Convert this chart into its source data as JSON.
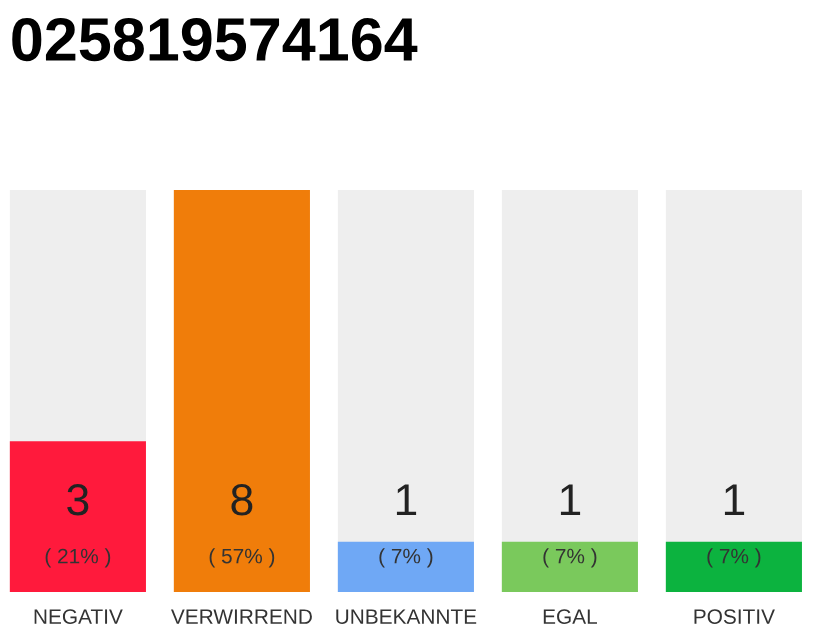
{
  "chart_data": {
    "type": "bar",
    "title": "025819574164",
    "categories": [
      "NEGATIV",
      "VERWIRREND",
      "UNBEKANNTE",
      "EGAL",
      "POSITIV"
    ],
    "values": [
      3,
      8,
      1,
      1,
      1
    ],
    "colors": [
      "#ff1a3c",
      "#f07d0a",
      "#6fa8f5",
      "#7ac95c",
      "#0cb33f"
    ],
    "data_labels": true,
    "ylim": [
      0,
      8
    ],
    "tick_labels": "x",
    "grid": false,
    "annotations": [
      "( 21% )",
      "( 57% )",
      "( 7% )",
      "( 7% )",
      "( 7% )"
    ]
  }
}
